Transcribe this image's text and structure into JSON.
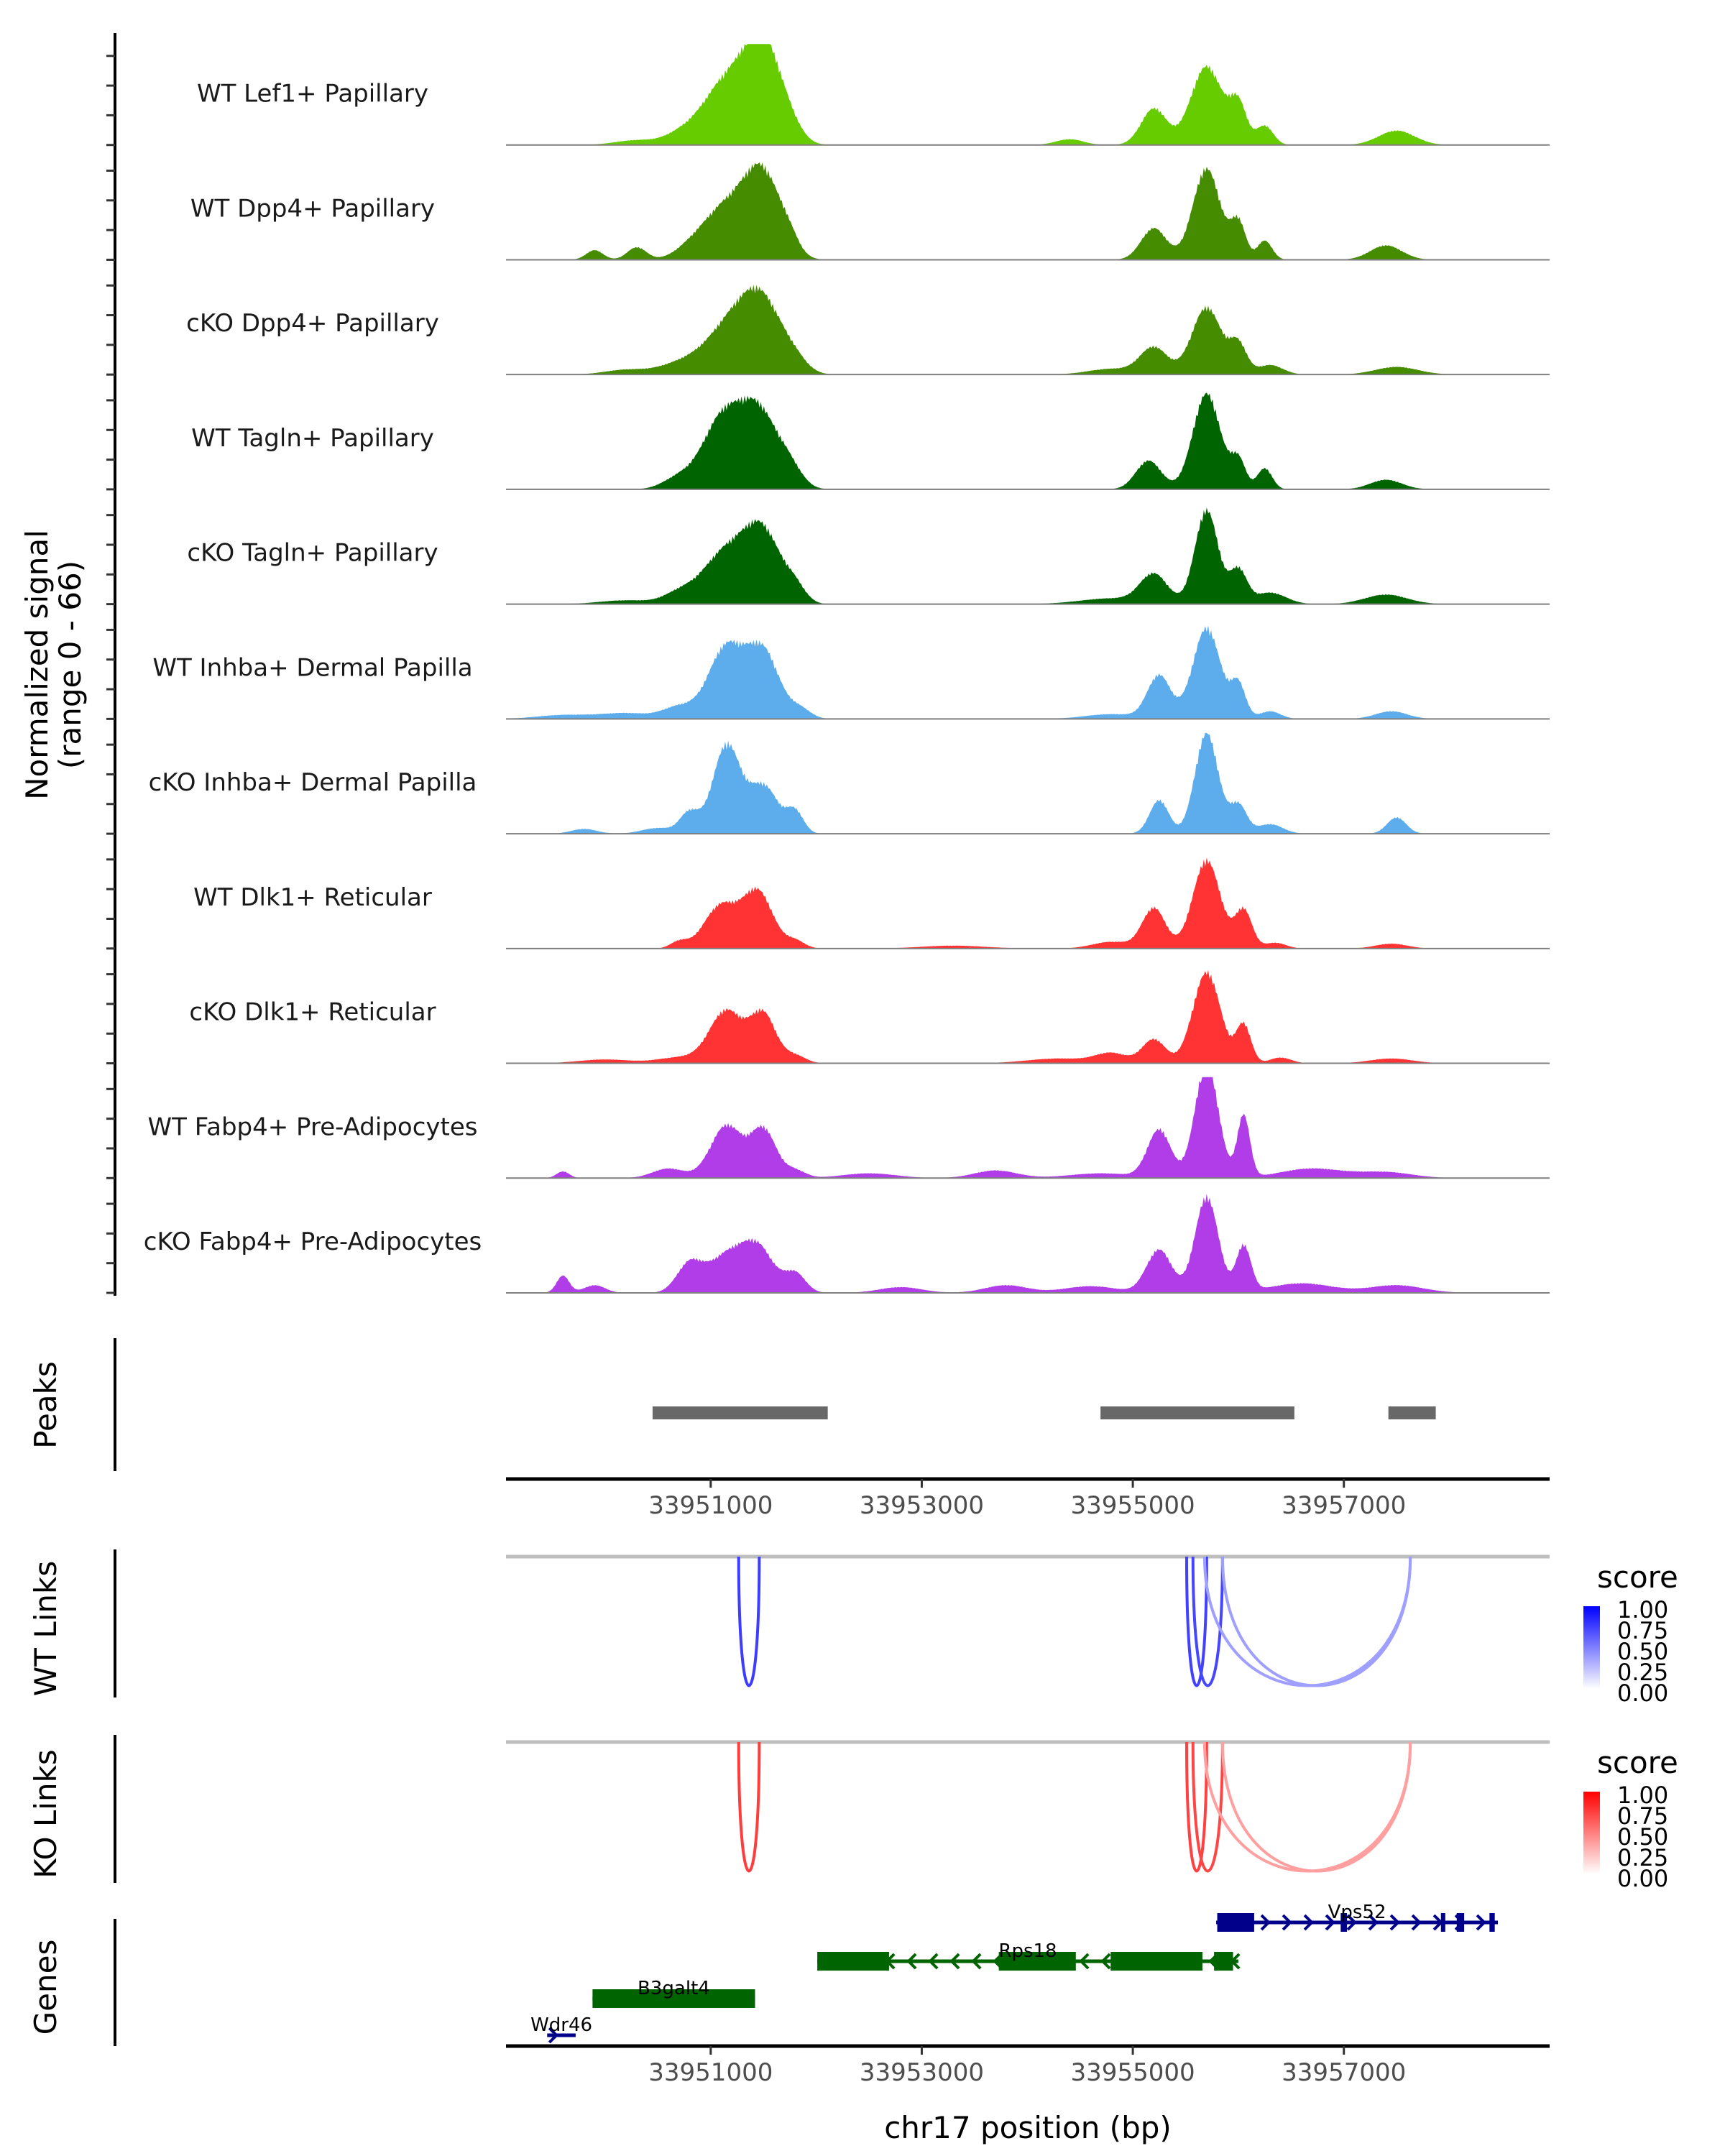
{
  "chart_data": {
    "type": "area",
    "title": "",
    "region": {
      "chrom": "chr17",
      "start": 33949060,
      "end": 33958950
    },
    "xlabel": "chr17 position (bp)",
    "x_ticks": [
      33951000,
      33953000,
      33955000,
      33957000
    ],
    "x_tick_labels": [
      "33951000",
      "33953000",
      "33955000",
      "33957000"
    ],
    "coverage": {
      "ylabel_line1": "Normalized signal",
      "ylabel_line2": "(range 0 - 66)",
      "ylim": [
        0,
        66
      ],
      "ticks_per_track": 4,
      "tracks": [
        {
          "name": "WT Lef1+ Papillary",
          "color": "#66CC00",
          "peaks": [
            [
              33950300,
              0.05,
              200
            ],
            [
              33950700,
              0.08,
              150
            ],
            [
              33951150,
              0.66,
              230
            ],
            [
              33951500,
              0.95,
              170
            ],
            [
              33951750,
              0.12,
              120
            ],
            [
              33954400,
              0.06,
              130
            ],
            [
              33955200,
              0.38,
              120
            ],
            [
              33955700,
              0.82,
              150
            ],
            [
              33956000,
              0.4,
              80
            ],
            [
              33956250,
              0.2,
              80
            ],
            [
              33957500,
              0.15,
              170
            ]
          ]
        },
        {
          "name": "WT Dpp4+ Papillary",
          "color": "#468C00",
          "peaks": [
            [
              33949900,
              0.1,
              80
            ],
            [
              33950300,
              0.13,
              90
            ],
            [
              33950800,
              0.08,
              150
            ],
            [
              33951150,
              0.55,
              220
            ],
            [
              33951500,
              0.82,
              170
            ],
            [
              33951750,
              0.12,
              90
            ],
            [
              33955200,
              0.33,
              120
            ],
            [
              33955700,
              0.95,
              130
            ],
            [
              33956000,
              0.38,
              70
            ],
            [
              33956250,
              0.2,
              70
            ],
            [
              33957400,
              0.15,
              150
            ]
          ]
        },
        {
          "name": "cKO Dpp4+ Papillary",
          "color": "#468C00",
          "peaks": [
            [
              33950200,
              0.05,
              200
            ],
            [
              33950700,
              0.1,
              200
            ],
            [
              33951200,
              0.52,
              240
            ],
            [
              33951500,
              0.62,
              190
            ],
            [
              33951800,
              0.1,
              120
            ],
            [
              33954800,
              0.06,
              220
            ],
            [
              33955200,
              0.28,
              130
            ],
            [
              33955700,
              0.7,
              140
            ],
            [
              33956000,
              0.3,
              80
            ],
            [
              33956300,
              0.1,
              120
            ],
            [
              33957500,
              0.08,
              200
            ]
          ]
        },
        {
          "name": "WT Tagln+ Papillary",
          "color": "#006400",
          "peaks": [
            [
              33950700,
              0.12,
              150
            ],
            [
              33951100,
              0.7,
              180
            ],
            [
              33951450,
              0.8,
              180
            ],
            [
              33951750,
              0.18,
              120
            ],
            [
              33955150,
              0.3,
              120
            ],
            [
              33955700,
              1.0,
              130
            ],
            [
              33956000,
              0.3,
              70
            ],
            [
              33956250,
              0.22,
              70
            ],
            [
              33957400,
              0.1,
              150
            ]
          ]
        },
        {
          "name": "cKO Tagln+ Papillary",
          "color": "#006400",
          "peaks": [
            [
              33950200,
              0.04,
              250
            ],
            [
              33950700,
              0.1,
              150
            ],
            [
              33951150,
              0.55,
              220
            ],
            [
              33951500,
              0.68,
              170
            ],
            [
              33951800,
              0.15,
              100
            ],
            [
              33954800,
              0.06,
              300
            ],
            [
              33955200,
              0.3,
              130
            ],
            [
              33955700,
              0.98,
              110
            ],
            [
              33956000,
              0.35,
              80
            ],
            [
              33956300,
              0.12,
              150
            ],
            [
              33957400,
              0.1,
              200
            ]
          ]
        },
        {
          "name": "WT Inhba+ Dermal Papilla",
          "color": "#5DADEC",
          "peaks": [
            [
              33949600,
              0.04,
              250
            ],
            [
              33950200,
              0.06,
              250
            ],
            [
              33950700,
              0.12,
              150
            ],
            [
              33951150,
              0.75,
              170
            ],
            [
              33951500,
              0.68,
              150
            ],
            [
              33951850,
              0.1,
              100
            ],
            [
              33954800,
              0.05,
              250
            ],
            [
              33955250,
              0.45,
              110
            ],
            [
              33955700,
              0.95,
              130
            ],
            [
              33956000,
              0.35,
              70
            ],
            [
              33956300,
              0.08,
              100
            ],
            [
              33957450,
              0.08,
              150
            ]
          ]
        },
        {
          "name": "cKO Inhba+ Dermal Papilla",
          "color": "#5DADEC",
          "peaks": [
            [
              33949800,
              0.05,
              120
            ],
            [
              33950500,
              0.06,
              150
            ],
            [
              33950800,
              0.22,
              90
            ],
            [
              33951150,
              0.92,
              130
            ],
            [
              33951500,
              0.5,
              140
            ],
            [
              33951800,
              0.22,
              80
            ],
            [
              33955250,
              0.35,
              90
            ],
            [
              33955700,
              1.05,
              110
            ],
            [
              33956000,
              0.3,
              80
            ],
            [
              33956300,
              0.1,
              120
            ],
            [
              33957500,
              0.17,
              90
            ]
          ]
        },
        {
          "name": "WT Dlk1+ Reticular",
          "color": "#FF3333",
          "peaks": [
            [
              33950700,
              0.07,
              80
            ],
            [
              33951100,
              0.45,
              160
            ],
            [
              33951450,
              0.58,
              140
            ],
            [
              33951800,
              0.08,
              90
            ],
            [
              33953300,
              0.03,
              300
            ],
            [
              33954800,
              0.07,
              180
            ],
            [
              33955200,
              0.42,
              110
            ],
            [
              33955700,
              0.92,
              130
            ],
            [
              33956050,
              0.4,
              80
            ],
            [
              33956350,
              0.06,
              100
            ],
            [
              33957450,
              0.05,
              150
            ]
          ]
        },
        {
          "name": "cKO Dlk1+ Reticular",
          "color": "#FF3333",
          "peaks": [
            [
              33950000,
              0.04,
              250
            ],
            [
              33950700,
              0.06,
              200
            ],
            [
              33951150,
              0.55,
              160
            ],
            [
              33951500,
              0.5,
              120
            ],
            [
              33951800,
              0.08,
              100
            ],
            [
              33954300,
              0.05,
              300
            ],
            [
              33954800,
              0.1,
              150
            ],
            [
              33955200,
              0.25,
              110
            ],
            [
              33955700,
              0.95,
              130
            ],
            [
              33956050,
              0.4,
              70
            ],
            [
              33956400,
              0.06,
              100
            ],
            [
              33957450,
              0.05,
              200
            ]
          ]
        },
        {
          "name": "WT Fabp4+ Pre-Adipocytes",
          "color": "#B03DE8",
          "peaks": [
            [
              33949600,
              0.07,
              60
            ],
            [
              33950600,
              0.1,
              150
            ],
            [
              33951150,
              0.55,
              150
            ],
            [
              33951500,
              0.5,
              120
            ],
            [
              33951800,
              0.08,
              100
            ],
            [
              33952500,
              0.05,
              250
            ],
            [
              33953700,
              0.08,
              200
            ],
            [
              33954700,
              0.05,
              300
            ],
            [
              33955250,
              0.5,
              110
            ],
            [
              33955700,
              1.2,
              110
            ],
            [
              33956050,
              0.65,
              60
            ],
            [
              33956700,
              0.1,
              300
            ],
            [
              33957400,
              0.06,
              250
            ]
          ]
        },
        {
          "name": "cKO Fabp4+ Pre-Adipocytes",
          "color": "#B03DE8",
          "peaks": [
            [
              33949600,
              0.18,
              60
            ],
            [
              33949900,
              0.08,
              100
            ],
            [
              33950800,
              0.3,
              120
            ],
            [
              33951150,
              0.38,
              170
            ],
            [
              33951450,
              0.45,
              150
            ],
            [
              33951800,
              0.2,
              100
            ],
            [
              33952800,
              0.06,
              200
            ],
            [
              33953800,
              0.08,
              200
            ],
            [
              33954600,
              0.07,
              250
            ],
            [
              33955250,
              0.45,
              120
            ],
            [
              33955700,
              1.0,
              110
            ],
            [
              33956050,
              0.48,
              70
            ],
            [
              33956600,
              0.1,
              300
            ],
            [
              33957500,
              0.08,
              250
            ]
          ]
        }
      ]
    },
    "peaks": {
      "label": "Peaks",
      "color": "#686868",
      "intervals": [
        [
          33950449,
          33952109
        ],
        [
          33954694,
          33956531
        ],
        [
          33957422,
          33957871
        ]
      ]
    },
    "links": [
      {
        "label": "WT Links",
        "legend_title": "score",
        "low_color": "#FFFFFF",
        "high_color": "#0000FF",
        "legend_ticks": [
          "1.00",
          "0.75",
          "0.50",
          "0.25",
          "0.00"
        ],
        "arcs": [
          [
            33951265,
            33951460,
            0.8
          ],
          [
            33955510,
            33955700,
            0.78
          ],
          [
            33955570,
            33955850,
            0.75
          ],
          [
            33955680,
            33957630,
            0.25
          ],
          [
            33955850,
            33957630,
            0.25
          ]
        ]
      },
      {
        "label": "KO Links",
        "legend_title": "score",
        "low_color": "#FFFFFF",
        "high_color": "#FF0000",
        "legend_ticks": [
          "1.00",
          "0.75",
          "0.50",
          "0.25",
          "0.00"
        ],
        "arcs": [
          [
            33951265,
            33951460,
            0.8
          ],
          [
            33955510,
            33955700,
            0.78
          ],
          [
            33955570,
            33955850,
            0.75
          ],
          [
            33955680,
            33957630,
            0.25
          ],
          [
            33955850,
            33957630,
            0.25
          ]
        ]
      }
    ],
    "genes": {
      "label": "Genes",
      "items": [
        {
          "name": "Vps52",
          "strand": "+",
          "color": "#00008B",
          "row": 0,
          "start": 33955790,
          "end": 33958460,
          "exons": [
            [
              33955800,
              33956150
            ],
            [
              33956970,
              33957030
            ],
            [
              33957920,
              33957960
            ],
            [
              33958070,
              33958140
            ],
            [
              33958380,
              33958430
            ]
          ]
        },
        {
          "name": "Rps18",
          "strand": "-",
          "color": "#006400",
          "row": 1,
          "start": 33952010,
          "end": 33956000,
          "exons": [
            [
              33952010,
              33952690
            ],
            [
              33953730,
              33954460
            ],
            [
              33954790,
              33955660
            ],
            [
              33955770,
              33955950
            ]
          ]
        },
        {
          "name": "B3galt4",
          "strand": "+",
          "color": "#006400",
          "row": 2,
          "start": 33949880,
          "end": 33951420,
          "exons": [
            [
              33949880,
              33951420
            ]
          ]
        },
        {
          "name": "Wdr46",
          "strand": "+",
          "color": "#00008B",
          "row": 3,
          "start": 33949450,
          "end": 33949720,
          "exons": []
        }
      ]
    }
  }
}
